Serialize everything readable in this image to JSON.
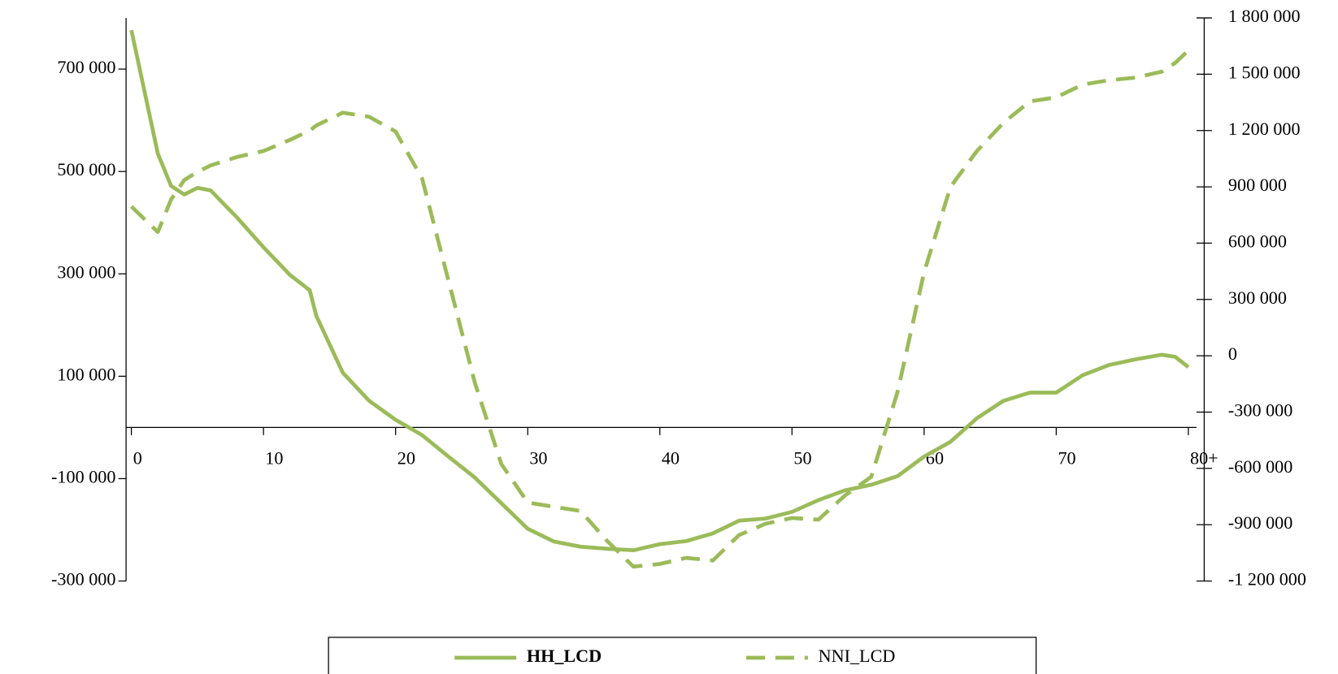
{
  "chart_data": {
    "type": "line",
    "x": [
      0,
      2,
      3,
      4,
      5,
      6,
      8,
      10,
      12,
      13.5,
      14,
      16,
      18,
      20,
      22,
      24,
      26,
      28,
      30,
      32,
      34,
      36,
      38,
      40,
      42,
      44,
      46,
      48,
      50,
      52,
      54,
      56,
      58,
      60,
      62,
      64,
      66,
      68,
      70,
      72,
      74,
      76,
      78,
      79,
      80
    ],
    "series": [
      {
        "name": "HH_LCD",
        "color": "#9bbb59",
        "dash": "solid",
        "values": [
          776000,
          535000,
          472000,
          455000,
          468000,
          463000,
          410000,
          352000,
          298000,
          268000,
          218000,
          107000,
          52000,
          15000,
          -15000,
          -57000,
          -98000,
          -148000,
          -198000,
          -223000,
          -233000,
          -237000,
          -240000,
          -228000,
          -222000,
          -207000,
          -182000,
          -178000,
          -165000,
          -142000,
          -123000,
          -112000,
          -95000,
          -57000,
          -28000,
          18000,
          52000,
          68000,
          68000,
          102000,
          122000,
          133000,
          142000,
          138000,
          118000
        ]
      },
      {
        "name": "NNI_LCD",
        "color": "#9bbb59",
        "dash": "dashed",
        "axis": "y2",
        "values": [
          795000,
          659000,
          832000,
          936000,
          980000,
          1014000,
          1059000,
          1091000,
          1150000,
          1200000,
          1227000,
          1295000,
          1273000,
          1195000,
          945000,
          400000,
          -145000,
          -577000,
          -782000,
          -805000,
          -827000,
          -986000,
          -1123000,
          -1109000,
          -1077000,
          -1091000,
          -955000,
          -895000,
          -864000,
          -873000,
          -745000,
          -645000,
          -191000,
          445000,
          900000,
          1091000,
          1241000,
          1355000,
          1377000,
          1445000,
          1468000,
          1482000,
          1514000,
          1560000,
          1627000
        ]
      }
    ],
    "xlim": [
      -0.4,
      81.2
    ],
    "xticks": [
      0,
      10,
      20,
      30,
      40,
      50,
      60,
      70,
      {
        "value": 80,
        "label": "80+"
      }
    ],
    "ylim": [
      -300000,
      800000
    ],
    "yticks": [
      {
        "value": -300000,
        "label": "-300 000"
      },
      {
        "value": -100000,
        "label": "-100 000"
      },
      {
        "value": 100000,
        "label": "100 000"
      },
      {
        "value": 300000,
        "label": "300 000"
      },
      {
        "value": 500000,
        "label": "500 000"
      },
      {
        "value": 700000,
        "label": "700 000"
      }
    ],
    "y2lim": [
      -1200000,
      1800000
    ],
    "y2ticks": [
      {
        "value": -1200000,
        "label": "-1 200 000"
      },
      {
        "value": -900000,
        "label": "-900 000"
      },
      {
        "value": -600000,
        "label": "-600 000"
      },
      {
        "value": -300000,
        "label": "-300 000"
      },
      0,
      {
        "value": 300000,
        "label": "300 000"
      },
      {
        "value": 600000,
        "label": "600 000"
      },
      {
        "value": 900000,
        "label": "900 000"
      },
      {
        "value": 1200000,
        "label": "1 200 000"
      },
      {
        "value": 1500000,
        "label": "1 500 000"
      },
      {
        "value": 1800000,
        "label": "1 800 000"
      }
    ],
    "legend": "bottom"
  }
}
